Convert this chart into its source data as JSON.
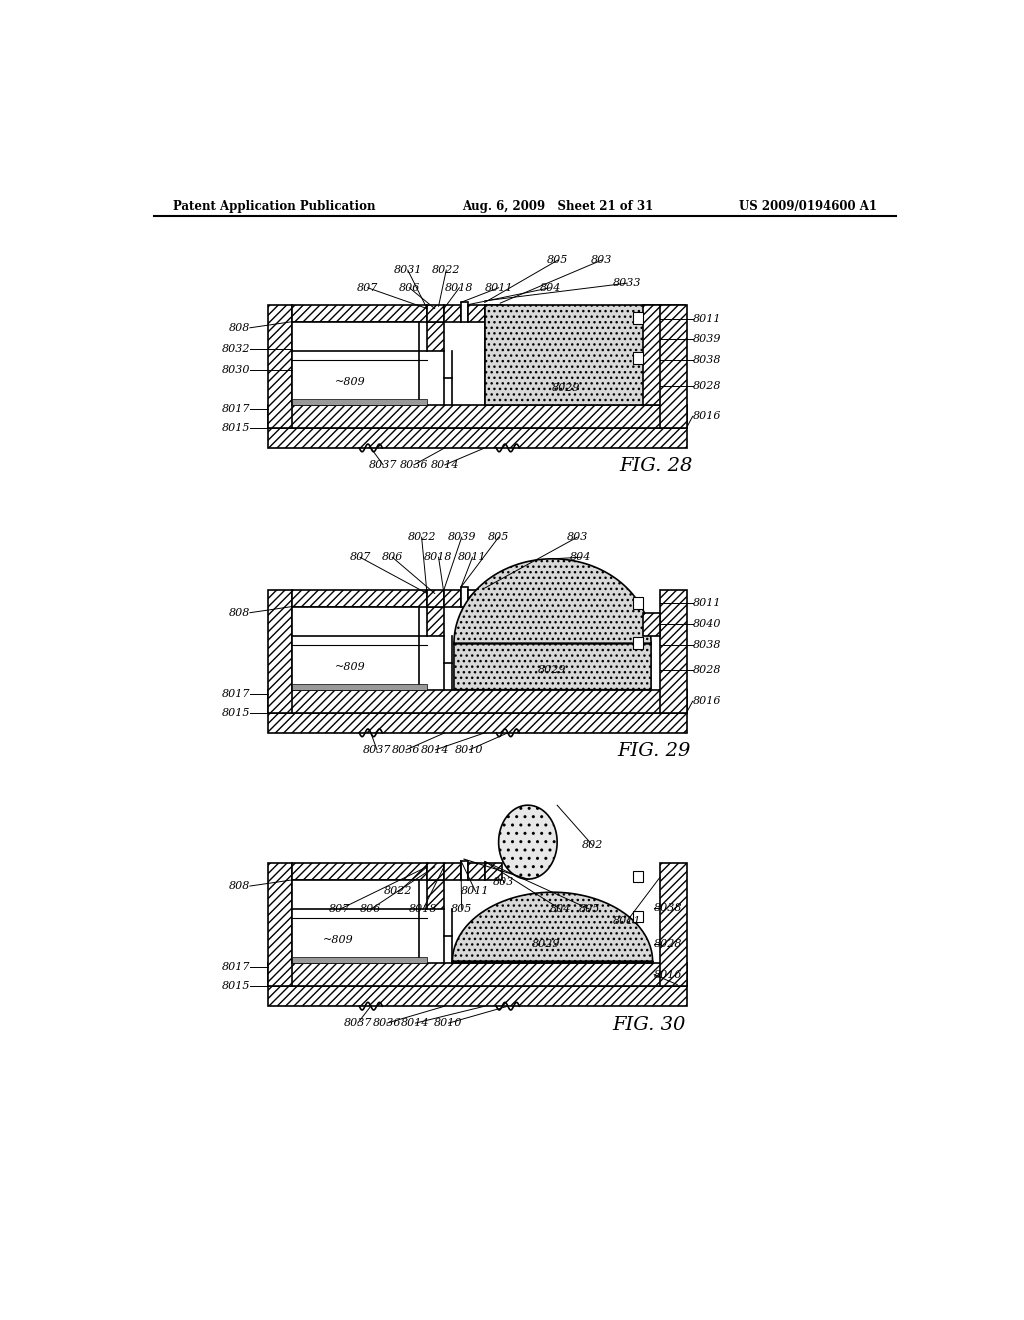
{
  "header_left": "Patent Application Publication",
  "header_mid": "Aug. 6, 2009   Sheet 21 of 31",
  "header_right": "US 2009/0194600 A1",
  "fig28_label": "FIG. 28",
  "fig29_label": "FIG. 29",
  "fig30_label": "FIG. 30",
  "bg_color": "#ffffff",
  "line_color": "#000000"
}
